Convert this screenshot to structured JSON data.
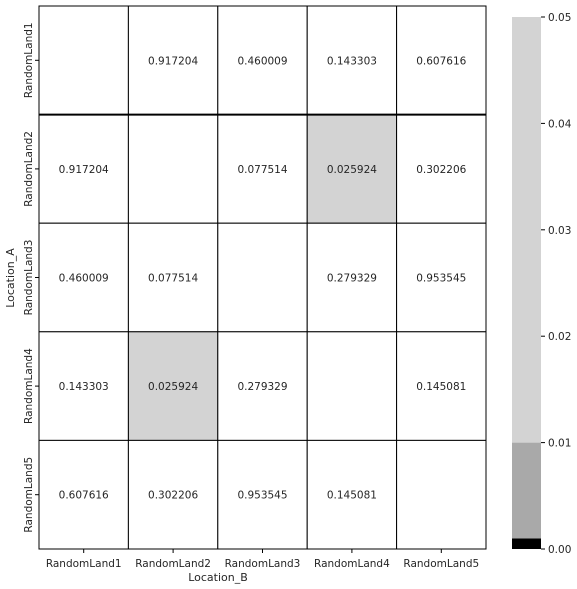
{
  "chart_data": {
    "type": "heatmap",
    "title": "",
    "xlabel": "Location_B",
    "ylabel": "Location_A",
    "x_categories": [
      "RandomLand1",
      "RandomLand2",
      "RandomLand3",
      "RandomLand4",
      "RandomLand5"
    ],
    "y_categories": [
      "RandomLand1",
      "RandomLand2",
      "RandomLand3",
      "RandomLand4",
      "RandomLand5"
    ],
    "values": [
      [
        null,
        0.917204,
        0.460009,
        0.143303,
        0.607616
      ],
      [
        0.917204,
        null,
        0.077514,
        0.025924,
        0.302206
      ],
      [
        0.460009,
        0.077514,
        null,
        0.279329,
        0.953545
      ],
      [
        0.143303,
        0.025924,
        0.279329,
        null,
        0.145081
      ],
      [
        0.607616,
        0.302206,
        0.953545,
        0.145081,
        null
      ]
    ],
    "value_labels": [
      [
        "",
        "0.917204",
        "0.460009",
        "0.143303",
        "0.607616"
      ],
      [
        "0.917204",
        "",
        "0.077514",
        "0.025924",
        "0.302206"
      ],
      [
        "0.460009",
        "0.077514",
        "",
        "0.279329",
        "0.953545"
      ],
      [
        "0.143303",
        "0.025924",
        "0.279329",
        "",
        "0.145081"
      ],
      [
        "0.607616",
        "0.302206",
        "0.953545",
        "0.145081",
        ""
      ]
    ],
    "colorbar": {
      "vmin": 0.0,
      "vmax": 0.05,
      "ticks": [
        "0.00",
        "0.01",
        "0.02",
        "0.03",
        "0.04",
        "0.05"
      ],
      "bands": [
        {
          "from": 0.0,
          "to": 0.001,
          "color": "#000000"
        },
        {
          "from": 0.001,
          "to": 0.01,
          "color": "#a9a9a9"
        },
        {
          "from": 0.01,
          "to": 0.05,
          "color": "#d3d3d3"
        }
      ],
      "over_color": "#ffffff",
      "placement": "right"
    },
    "grid": true,
    "cell_border_color": "#000000"
  }
}
